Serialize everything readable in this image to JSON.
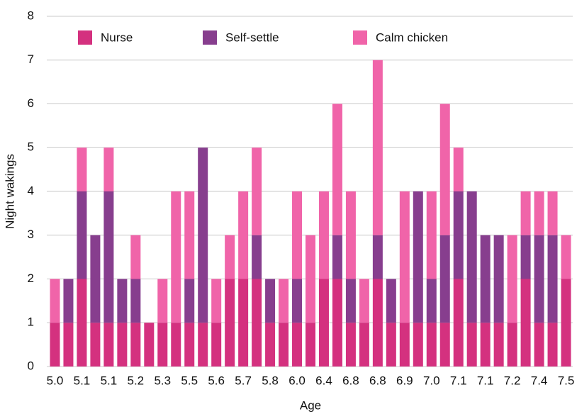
{
  "chart_data": {
    "type": "stacked_bar",
    "x_label": "Age",
    "y_label": "Night wakings",
    "categories": [
      "5.0",
      null,
      "5.1",
      null,
      "5.1",
      null,
      "5.2",
      null,
      "5.3",
      null,
      "5.5",
      null,
      "5.6",
      null,
      "5.7",
      null,
      "5.8",
      null,
      "6.0",
      null,
      "6.4",
      null,
      "6.8",
      null,
      "6.8",
      null,
      "6.9",
      null,
      "7.0",
      null,
      "7.1",
      null,
      "7.1",
      null,
      "7.2",
      null,
      "7.4",
      null,
      "7.5"
    ],
    "series": [
      {
        "name": "Nurse",
        "color": "#d4317f",
        "values": [
          1,
          1,
          2,
          1,
          1,
          1,
          1,
          1,
          1,
          1,
          1,
          1,
          1,
          2,
          2,
          2,
          1,
          1,
          1,
          1,
          2,
          2,
          1,
          1,
          2,
          1,
          1,
          1,
          1,
          1,
          2,
          1,
          1,
          1,
          1,
          2,
          1,
          1,
          2
        ]
      },
      {
        "name": "Self-settle",
        "color": "#873e8e",
        "values": [
          0,
          1,
          2,
          2,
          3,
          1,
          1,
          0,
          0,
          0,
          1,
          4,
          0,
          0,
          0,
          1,
          1,
          0,
          1,
          0,
          0,
          1,
          1,
          0,
          1,
          1,
          0,
          3,
          1,
          2,
          2,
          3,
          2,
          2,
          0,
          1,
          2,
          2,
          0
        ]
      },
      {
        "name": "Calm chicken",
        "color": "#f064a9",
        "values": [
          1,
          0,
          1,
          0,
          1,
          0,
          1,
          0,
          1,
          3,
          2,
          0,
          1,
          1,
          2,
          2,
          0,
          1,
          2,
          2,
          2,
          3,
          2,
          1,
          4,
          0,
          3,
          0,
          2,
          3,
          1,
          0,
          0,
          0,
          2,
          1,
          1,
          1,
          1
        ]
      }
    ],
    "ylim": [
      0,
      8
    ],
    "yticks": [
      0,
      1,
      2,
      3,
      4,
      5,
      6,
      7,
      8
    ],
    "grid": true
  }
}
